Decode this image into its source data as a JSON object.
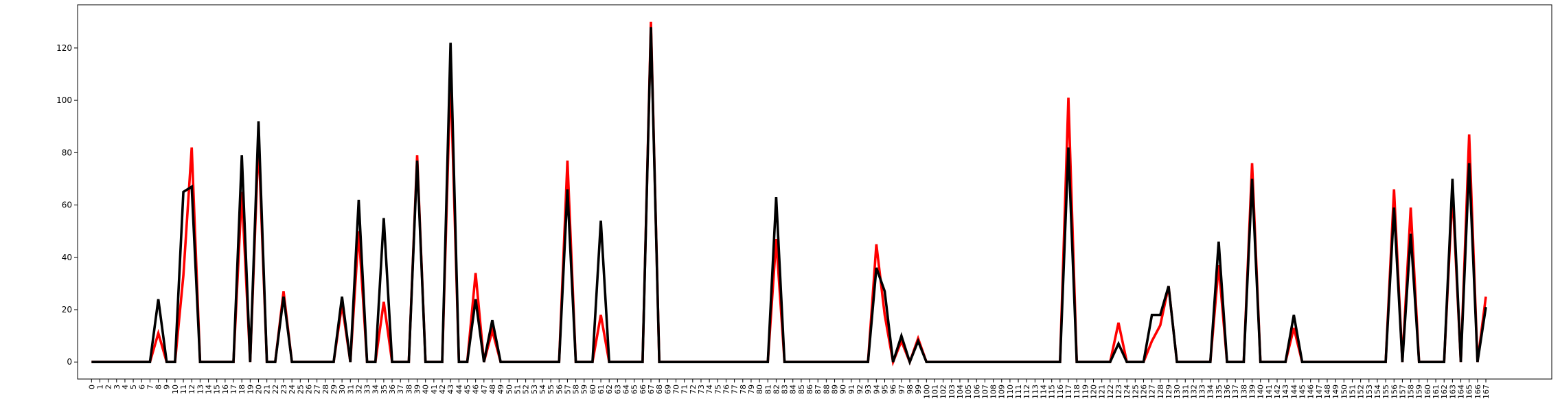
{
  "chart_data": {
    "type": "line",
    "categories": [
      "0",
      "1",
      "2",
      "3",
      "4",
      "5",
      "6",
      "7",
      "8",
      "9",
      "10",
      "11",
      "12",
      "13",
      "14",
      "15",
      "16",
      "17",
      "18",
      "19",
      "20",
      "21",
      "22",
      "23",
      "24",
      "25",
      "26",
      "27",
      "28",
      "29",
      "30",
      "31",
      "32",
      "33",
      "34",
      "35",
      "36",
      "37",
      "38",
      "39",
      "40",
      "41",
      "42",
      "43",
      "44",
      "45",
      "46",
      "47",
      "48",
      "49",
      "50",
      "51",
      "52",
      "53",
      "54",
      "55",
      "56",
      "57",
      "58",
      "59",
      "60",
      "61",
      "62",
      "63",
      "64",
      "65",
      "66",
      "67",
      "68",
      "69",
      "70",
      "71",
      "72",
      "73",
      "74",
      "75",
      "76",
      "77",
      "78",
      "79",
      "80",
      "81",
      "82",
      "83",
      "84",
      "85",
      "86",
      "87",
      "88",
      "89",
      "90",
      "91",
      "92",
      "93",
      "94",
      "95",
      "96",
      "97",
      "98",
      "99",
      "100",
      "101",
      "102",
      "103",
      "104",
      "105",
      "106",
      "107",
      "108",
      "109",
      "110",
      "111",
      "112",
      "113",
      "114",
      "115",
      "116",
      "117",
      "118",
      "119",
      "120",
      "121",
      "122",
      "123",
      "124",
      "125",
      "126",
      "127",
      "128",
      "129",
      "130",
      "131",
      "132",
      "133",
      "134",
      "135",
      "136",
      "137",
      "138",
      "139",
      "140",
      "141",
      "142",
      "143",
      "144",
      "145",
      "146",
      "147",
      "148",
      "149",
      "150",
      "151",
      "152",
      "153",
      "154",
      "155",
      "156",
      "157",
      "158",
      "159",
      "160",
      "161",
      "162",
      "163",
      "164",
      "165",
      "166",
      "167"
    ],
    "series": [
      {
        "color": "#ff0000",
        "values": [
          0,
          0,
          0,
          0,
          0,
          0,
          0,
          0,
          11,
          0,
          0,
          33,
          82,
          0,
          0,
          0,
          0,
          0,
          65,
          0,
          85,
          0,
          0,
          27,
          0,
          0,
          0,
          0,
          0,
          0,
          22,
          0,
          50,
          0,
          0,
          23,
          0,
          0,
          0,
          79,
          0,
          0,
          0,
          110,
          0,
          0,
          34,
          0,
          12,
          0,
          0,
          0,
          0,
          0,
          0,
          0,
          0,
          77,
          0,
          0,
          0,
          18,
          0,
          0,
          0,
          0,
          0,
          130,
          0,
          0,
          0,
          0,
          0,
          0,
          0,
          0,
          0,
          0,
          0,
          0,
          0,
          0,
          47,
          0,
          0,
          0,
          0,
          0,
          0,
          0,
          0,
          0,
          0,
          0,
          45,
          18,
          0,
          8,
          0,
          9,
          0,
          0,
          0,
          0,
          0,
          0,
          0,
          0,
          0,
          0,
          0,
          0,
          0,
          0,
          0,
          0,
          0,
          101,
          0,
          0,
          0,
          0,
          0,
          15,
          0,
          0,
          0,
          8,
          14,
          29,
          0,
          0,
          0,
          0,
          0,
          37,
          0,
          0,
          0,
          76,
          0,
          0,
          0,
          0,
          13,
          0,
          0,
          0,
          0,
          0,
          0,
          0,
          0,
          0,
          0,
          0,
          66,
          0,
          59,
          0,
          0,
          0,
          0,
          65,
          0,
          87,
          0,
          25
        ]
      },
      {
        "color": "#000000",
        "values": [
          0,
          0,
          0,
          0,
          0,
          0,
          0,
          0,
          24,
          0,
          0,
          65,
          67,
          0,
          0,
          0,
          0,
          0,
          79,
          0,
          92,
          0,
          0,
          25,
          0,
          0,
          0,
          0,
          0,
          0,
          25,
          0,
          62,
          0,
          0,
          55,
          0,
          0,
          0,
          77,
          0,
          0,
          0,
          122,
          0,
          0,
          24,
          0,
          16,
          0,
          0,
          0,
          0,
          0,
          0,
          0,
          0,
          66,
          0,
          0,
          0,
          54,
          0,
          0,
          0,
          0,
          0,
          128,
          0,
          0,
          0,
          0,
          0,
          0,
          0,
          0,
          0,
          0,
          0,
          0,
          0,
          0,
          63,
          0,
          0,
          0,
          0,
          0,
          0,
          0,
          0,
          0,
          0,
          0,
          36,
          27,
          0,
          10,
          0,
          8,
          0,
          0,
          0,
          0,
          0,
          0,
          0,
          0,
          0,
          0,
          0,
          0,
          0,
          0,
          0,
          0,
          0,
          82,
          0,
          0,
          0,
          0,
          0,
          7,
          0,
          0,
          0,
          18,
          18,
          29,
          0,
          0,
          0,
          0,
          0,
          46,
          0,
          0,
          0,
          70,
          0,
          0,
          0,
          0,
          18,
          0,
          0,
          0,
          0,
          0,
          0,
          0,
          0,
          0,
          0,
          0,
          59,
          0,
          49,
          0,
          0,
          0,
          0,
          70,
          0,
          76,
          0,
          21
        ]
      }
    ],
    "ylim": [
      -6.5,
      136.5
    ],
    "yticks": [
      0,
      20,
      40,
      60,
      80,
      100,
      120
    ]
  }
}
